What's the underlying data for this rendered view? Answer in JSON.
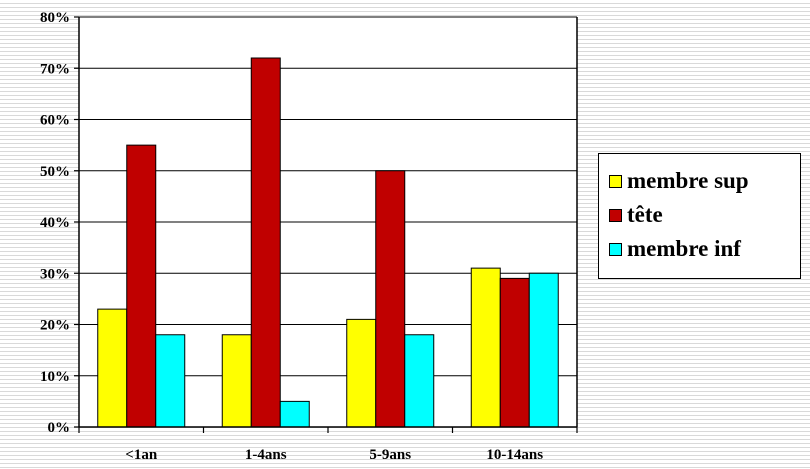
{
  "chart_data": {
    "type": "bar",
    "categories": [
      "<1an",
      "1-4ans",
      "5-9ans",
      "10-14ans"
    ],
    "series": [
      {
        "name": "membre sup",
        "color": "#ffff00",
        "values": [
          0.23,
          0.18,
          0.21,
          0.31
        ]
      },
      {
        "name": "tête",
        "color": "#c00000",
        "values": [
          0.55,
          0.72,
          0.5,
          0.29
        ]
      },
      {
        "name": "membre inf",
        "color": "#00ffff",
        "values": [
          0.18,
          0.05,
          0.18,
          0.3
        ]
      }
    ],
    "ylim": [
      0,
      0.8
    ],
    "yticks": [
      "0%",
      "10%",
      "20%",
      "30%",
      "40%",
      "50%",
      "60%",
      "70%",
      "80%"
    ],
    "grid": true,
    "legend_position": "right"
  }
}
